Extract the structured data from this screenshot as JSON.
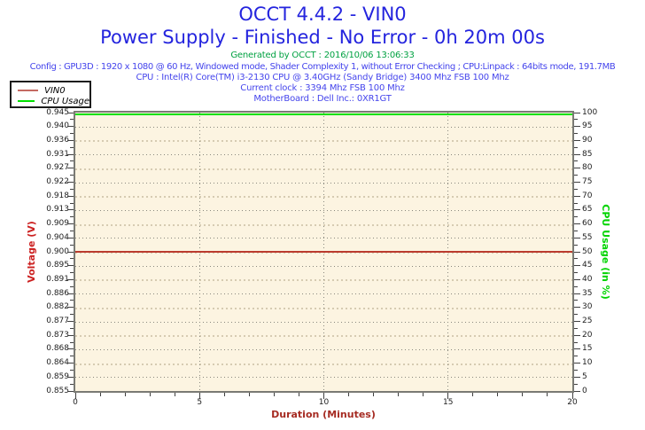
{
  "header": {
    "title": "OCCT 4.4.2 - VIN0",
    "subtitle": "Power Supply - Finished - No Error - 0h 20m 00s",
    "generated": "Generated by OCCT : 2016/10/06 13:06:33",
    "config": "Config : GPU3D : 1920 x 1080 @ 60 Hz, Windowed mode, Shader Complexity 1, without Error Checking ; CPU:Linpack : 64bits mode, 191.7MB",
    "cpu": "CPU : Intel(R) Core(TM) i3-2130 CPU @ 3.40GHz (Sandy Bridge) 3400 Mhz FSB 100 Mhz",
    "current_clock": "Current clock : 3394 Mhz FSB 100 Mhz",
    "motherboard": "MotherBoard : Dell Inc.: 0XR1GT"
  },
  "legend": {
    "items": [
      {
        "label": "VIN0",
        "color": "#c46a62"
      },
      {
        "label": "CPU Usage",
        "color": "#00e000"
      }
    ]
  },
  "colors": {
    "title_text": "#2424de",
    "info_text": "#4545ec",
    "generated_text": "#00a141",
    "plot_background": "#fcf4e1",
    "plot_border": "#7a7a74",
    "vin0_line": "#bb3b2e",
    "cpu_usage_line": "#00e000",
    "voltage_axis_label": "#cc2121",
    "cpu_axis_label": "#00d400",
    "duration_axis_label": "#a62b22"
  },
  "chart_data": {
    "type": "line",
    "title": "OCCT 4.4.2 - VIN0",
    "subtitle": "Power Supply - Finished - No Error - 0h 20m 00s",
    "grid": {
      "horizontal": "dotted line at every labeled voltage tick",
      "vertical": "dotted line at 5, 10 and 15 minutes",
      "legend_position": "top-left"
    },
    "x_axis": {
      "label": "Duration (Minutes)",
      "min": 0,
      "max": 20,
      "major_ticks": [
        0,
        5,
        10,
        15,
        20
      ],
      "tick_labels": [
        "0",
        "5",
        "10",
        "15",
        "20"
      ],
      "minor_step": 1
    },
    "left_axis": {
      "label": "Voltage (V)",
      "min": 0.855,
      "max": 0.945,
      "tick_labels": [
        "0.945",
        "0.940",
        "0.936",
        "0.931",
        "0.927",
        "0.922",
        "0.918",
        "0.913",
        "0.909",
        "0.904",
        "0.900",
        "0.895",
        "0.891",
        "0.886",
        "0.882",
        "0.877",
        "0.873",
        "0.868",
        "0.864",
        "0.859",
        "0.855"
      ]
    },
    "right_axis": {
      "label": "CPU Usage (in %)",
      "min": 0,
      "max": 100,
      "tick_labels": [
        "100",
        "95",
        "90",
        "85",
        "80",
        "75",
        "70",
        "65",
        "60",
        "55",
        "50",
        "45",
        "40",
        "35",
        "30",
        "25",
        "20",
        "15",
        "10",
        "5",
        "0"
      ]
    },
    "series": [
      {
        "name": "VIN0",
        "axis": "left",
        "color": "#bb3b2e",
        "x": [
          0,
          20
        ],
        "values": [
          0.9,
          0.9
        ]
      },
      {
        "name": "CPU Usage",
        "axis": "right",
        "color": "#00e000",
        "x": [
          0,
          20
        ],
        "values": [
          100,
          100
        ]
      }
    ]
  }
}
